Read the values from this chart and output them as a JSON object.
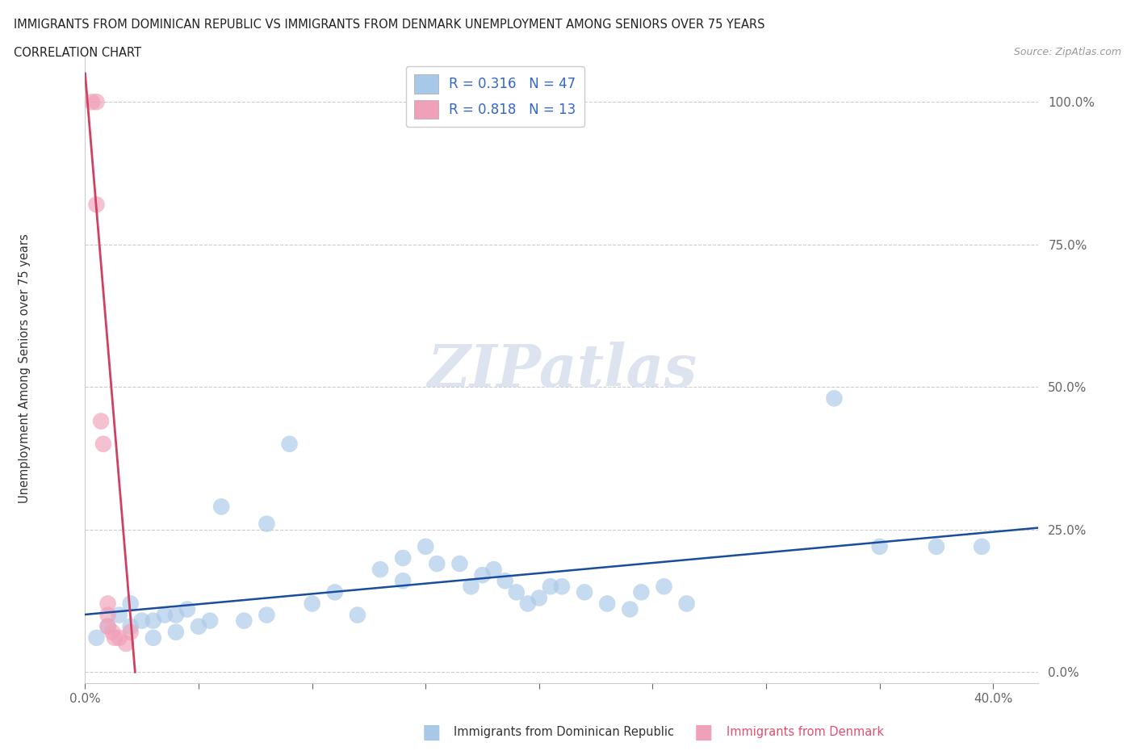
{
  "title_line1": "IMMIGRANTS FROM DOMINICAN REPUBLIC VS IMMIGRANTS FROM DENMARK UNEMPLOYMENT AMONG SENIORS OVER 75 YEARS",
  "title_line2": "CORRELATION CHART",
  "source": "Source: ZipAtlas.com",
  "ylabel": "Unemployment Among Seniors over 75 years",
  "xlim": [
    0.0,
    0.42
  ],
  "ylim": [
    -0.02,
    1.08
  ],
  "yticks": [
    0.0,
    0.25,
    0.5,
    0.75,
    1.0
  ],
  "ytick_labels": [
    "0.0%",
    "25.0%",
    "50.0%",
    "75.0%",
    "100.0%"
  ],
  "xticks": [
    0.0,
    0.05,
    0.1,
    0.15,
    0.2,
    0.25,
    0.3,
    0.35,
    0.4
  ],
  "xtick_labels": [
    "0.0%",
    "",
    "",
    "",
    "",
    "",
    "",
    "",
    "40.0%"
  ],
  "blue_R": "0.316",
  "blue_N": "47",
  "pink_R": "0.818",
  "pink_N": "13",
  "blue_color": "#a8c8e8",
  "pink_color": "#f0a0b8",
  "blue_line_color": "#1a4d9e",
  "pink_line_color": "#d04060",
  "legend_blue": "Immigrants from Dominican Republic",
  "legend_pink": "Immigrants from Denmark",
  "blue_scatter_x": [
    0.005,
    0.01,
    0.015,
    0.02,
    0.02,
    0.025,
    0.03,
    0.03,
    0.035,
    0.04,
    0.04,
    0.045,
    0.05,
    0.055,
    0.06,
    0.07,
    0.08,
    0.08,
    0.09,
    0.1,
    0.11,
    0.12,
    0.13,
    0.14,
    0.14,
    0.15,
    0.155,
    0.165,
    0.17,
    0.175,
    0.18,
    0.185,
    0.19,
    0.195,
    0.2,
    0.205,
    0.21,
    0.22,
    0.23,
    0.24,
    0.245,
    0.255,
    0.265,
    0.33,
    0.35,
    0.375,
    0.395
  ],
  "blue_scatter_y": [
    0.06,
    0.08,
    0.1,
    0.08,
    0.12,
    0.09,
    0.06,
    0.09,
    0.1,
    0.07,
    0.1,
    0.11,
    0.08,
    0.09,
    0.29,
    0.09,
    0.26,
    0.1,
    0.4,
    0.12,
    0.14,
    0.1,
    0.18,
    0.2,
    0.16,
    0.22,
    0.19,
    0.19,
    0.15,
    0.17,
    0.18,
    0.16,
    0.14,
    0.12,
    0.13,
    0.15,
    0.15,
    0.14,
    0.12,
    0.11,
    0.14,
    0.15,
    0.12,
    0.48,
    0.22,
    0.22,
    0.22
  ],
  "pink_scatter_x": [
    0.003,
    0.005,
    0.005,
    0.007,
    0.008,
    0.01,
    0.01,
    0.01,
    0.012,
    0.013,
    0.015,
    0.018,
    0.02
  ],
  "pink_scatter_y": [
    1.0,
    1.0,
    0.82,
    0.44,
    0.4,
    0.12,
    0.1,
    0.08,
    0.07,
    0.06,
    0.06,
    0.05,
    0.07
  ],
  "blue_line_x0": 0.0,
  "blue_line_x1": 0.4,
  "blue_line_y0": 0.07,
  "blue_line_y1": 0.25,
  "pink_line_x0": 0.0,
  "pink_line_x1": 0.022,
  "pink_line_y0": 1.05,
  "pink_line_y1": 0.0
}
